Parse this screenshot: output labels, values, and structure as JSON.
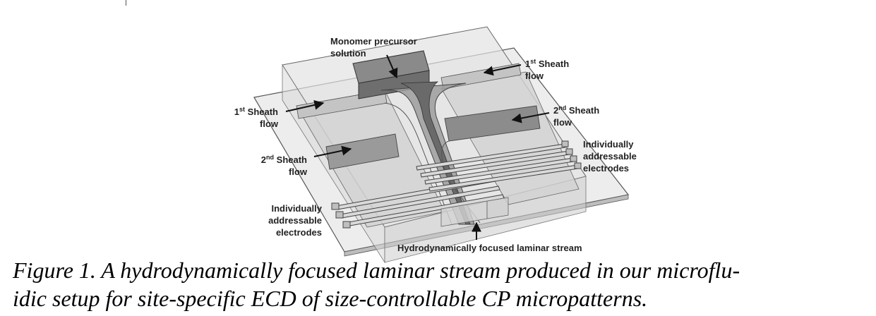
{
  "labels": {
    "monomer_line1": "Monomer precursor",
    "monomer_line2": "solution",
    "sheath1_right_prefix": "1",
    "sheath1_right_sup": "st",
    "sheath1_right_word": " Sheath",
    "sheath1_right_line2": "flow",
    "sheath1_left_prefix": "1",
    "sheath1_left_sup": "st",
    "sheath1_left_word": " Sheath",
    "sheath1_left_line2": "flow",
    "sheath2_right_prefix": "2",
    "sheath2_right_sup": "nd",
    "sheath2_right_word": " Sheath",
    "sheath2_right_line2": "flow",
    "sheath2_left_prefix": "2",
    "sheath2_left_sup": "nd",
    "sheath2_left_word": " Sheath",
    "sheath2_left_line2": "flow",
    "electrodes_right_line1": "Individually",
    "electrodes_right_line2": "addressable",
    "electrodes_right_line3": "electrodes",
    "electrodes_left_line1": "Individually",
    "electrodes_left_line2": "addressable",
    "electrodes_left_line3": "electrodes",
    "stream": "Hydrodynamically focused laminar stream"
  },
  "caption": {
    "line1": "Figure 1.  A hydrodynamically focused laminar stream produced in our microflu-",
    "line2": "idic setup for site-specific ECD of size-controllable CP micropatterns."
  },
  "colors": {
    "substrate": "#ececec",
    "channel_light": "#d2d2d2",
    "channel_mid": "#a8a8a8",
    "channel_dark": "#7a7a7a",
    "outline": "#444444"
  }
}
